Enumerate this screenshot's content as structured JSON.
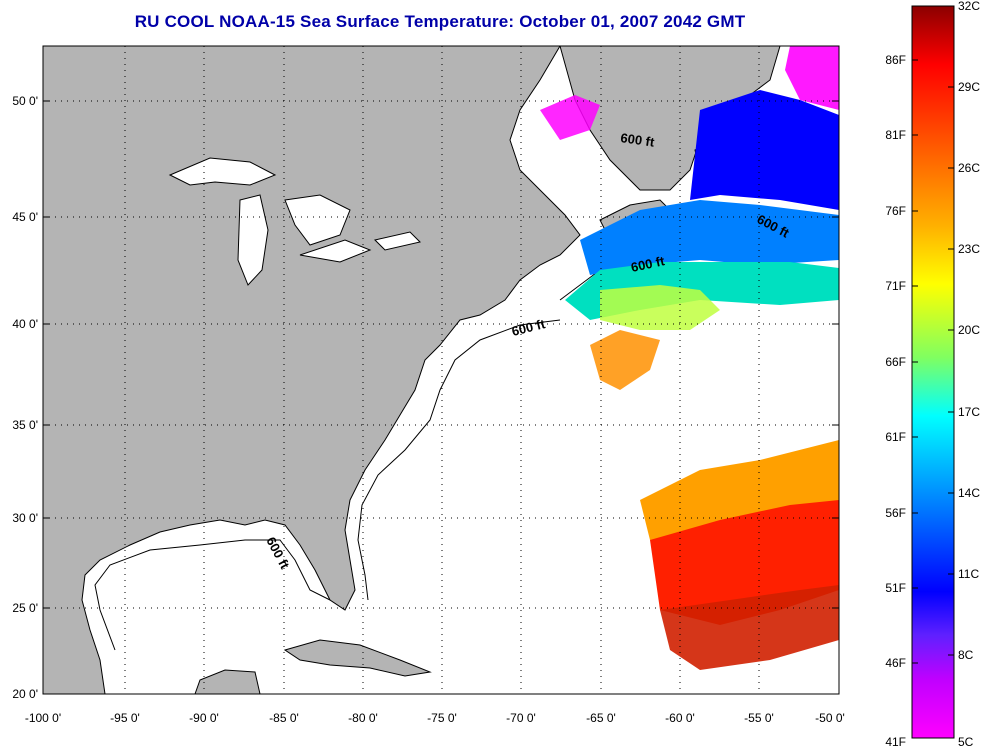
{
  "title": "RU COOL  NOAA-15  Sea Surface Temperature:  October 01, 2007 2042 GMT",
  "map": {
    "lon_range": [
      -100,
      -50
    ],
    "lat_range": [
      20,
      52.5
    ],
    "lon_ticks": [
      "-100 0'",
      "-95 0'",
      "-90 0'",
      "-85 0'",
      "-80 0'",
      "-75 0'",
      "-70 0'",
      "-65 0'",
      "-60 0'",
      "-55 0'",
      "-50 0'"
    ],
    "lat_ticks": [
      "50 0'",
      "45 0'",
      "40 0'",
      "35 0'",
      "30 0'",
      "25 0'",
      "20 0'"
    ],
    "grid": "dotted",
    "land_color": "#b4b4b4",
    "isobath_labels": [
      "600 ft",
      "600 ft",
      "600 ft",
      "600 ft",
      "600 ft"
    ]
  },
  "colorbar": {
    "celsius_labels": [
      "32C",
      "29C",
      "26C",
      "23C",
      "20C",
      "17C",
      "14C",
      "11C",
      "8C",
      "5C"
    ],
    "fahrenheit_labels": [
      "86F",
      "81F",
      "76F",
      "71F",
      "66F",
      "61F",
      "56F",
      "51F",
      "46F",
      "41F"
    ],
    "colors": [
      "#8b0000",
      "#ff0000",
      "#ff8000",
      "#ffff00",
      "#80ff80",
      "#00ffff",
      "#0080ff",
      "#0000ff",
      "#8000ff",
      "#ff00ff"
    ]
  }
}
